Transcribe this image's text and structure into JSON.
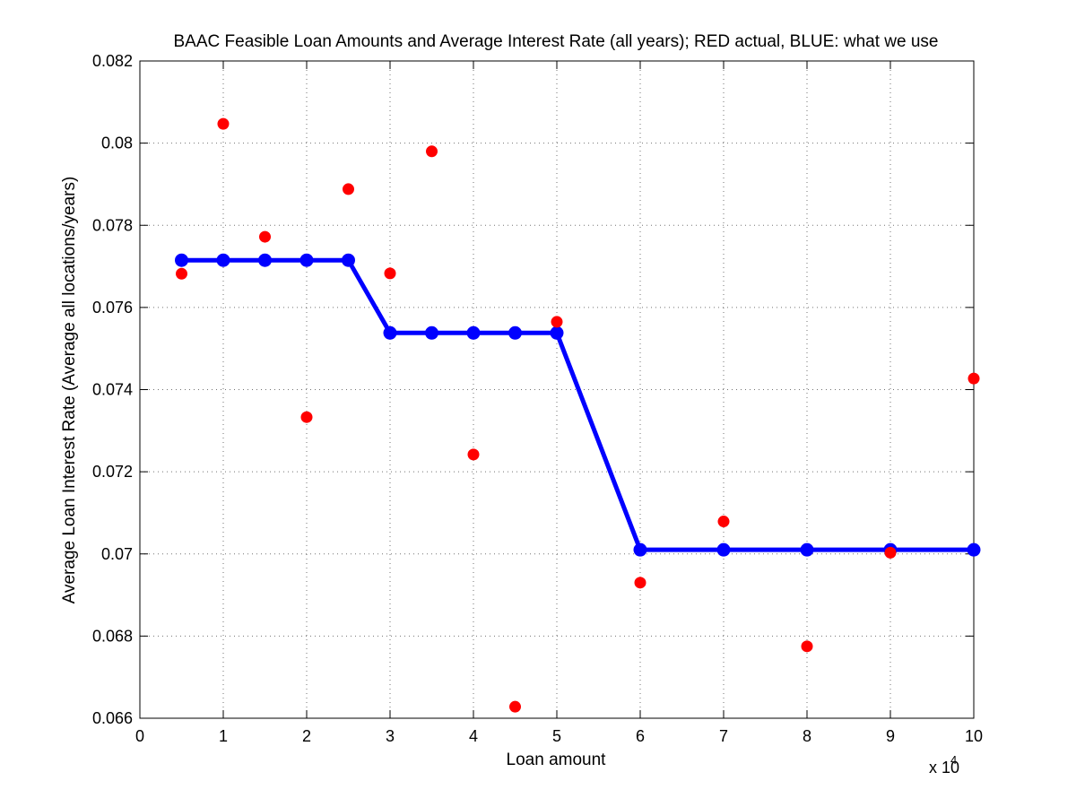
{
  "chart_data": {
    "type": "line",
    "title": "BAAC Feasible Loan Amounts and Average Interest Rate (all years); RED actual, BLUE: what we use",
    "xlabel": "Loan amount",
    "ylabel": "Average Loan Interest Rate (Average all locations/years)",
    "x_multiplier_label": "x 10",
    "x_multiplier_exponent": "4",
    "xlim": [
      0,
      10
    ],
    "ylim": [
      0.066,
      0.082
    ],
    "x_ticks": [
      "0",
      "1",
      "2",
      "3",
      "4",
      "5",
      "6",
      "7",
      "8",
      "9",
      "10"
    ],
    "y_ticks": [
      "0.066",
      "0.068",
      "0.07",
      "0.072",
      "0.074",
      "0.076",
      "0.078",
      "0.08",
      "0.082"
    ],
    "grid": true,
    "series": [
      {
        "kind": "line-with-markers",
        "color": "#0000ff",
        "points": [
          [
            0.5,
            0.07715
          ],
          [
            1,
            0.07715
          ],
          [
            1.5,
            0.07715
          ],
          [
            2,
            0.07715
          ],
          [
            2.5,
            0.07715
          ],
          [
            3,
            0.07538
          ],
          [
            3.5,
            0.07538
          ],
          [
            4,
            0.07538
          ],
          [
            4.5,
            0.07538
          ],
          [
            5,
            0.07538
          ],
          [
            6,
            0.0701
          ],
          [
            7,
            0.0701
          ],
          [
            8,
            0.0701
          ],
          [
            9,
            0.0701
          ],
          [
            10,
            0.0701
          ]
        ]
      },
      {
        "kind": "scatter",
        "color": "#ff0000",
        "points": [
          [
            0.5,
            0.07682
          ],
          [
            1,
            0.08047
          ],
          [
            1.5,
            0.07772
          ],
          [
            2,
            0.07333
          ],
          [
            2.5,
            0.07888
          ],
          [
            3,
            0.07683
          ],
          [
            3.5,
            0.0798
          ],
          [
            4,
            0.07242
          ],
          [
            4.5,
            0.06628
          ],
          [
            5,
            0.07565
          ],
          [
            6,
            0.0693
          ],
          [
            7,
            0.07079
          ],
          [
            8,
            0.06775
          ],
          [
            9,
            0.07003
          ],
          [
            10,
            0.07427
          ]
        ]
      }
    ]
  }
}
